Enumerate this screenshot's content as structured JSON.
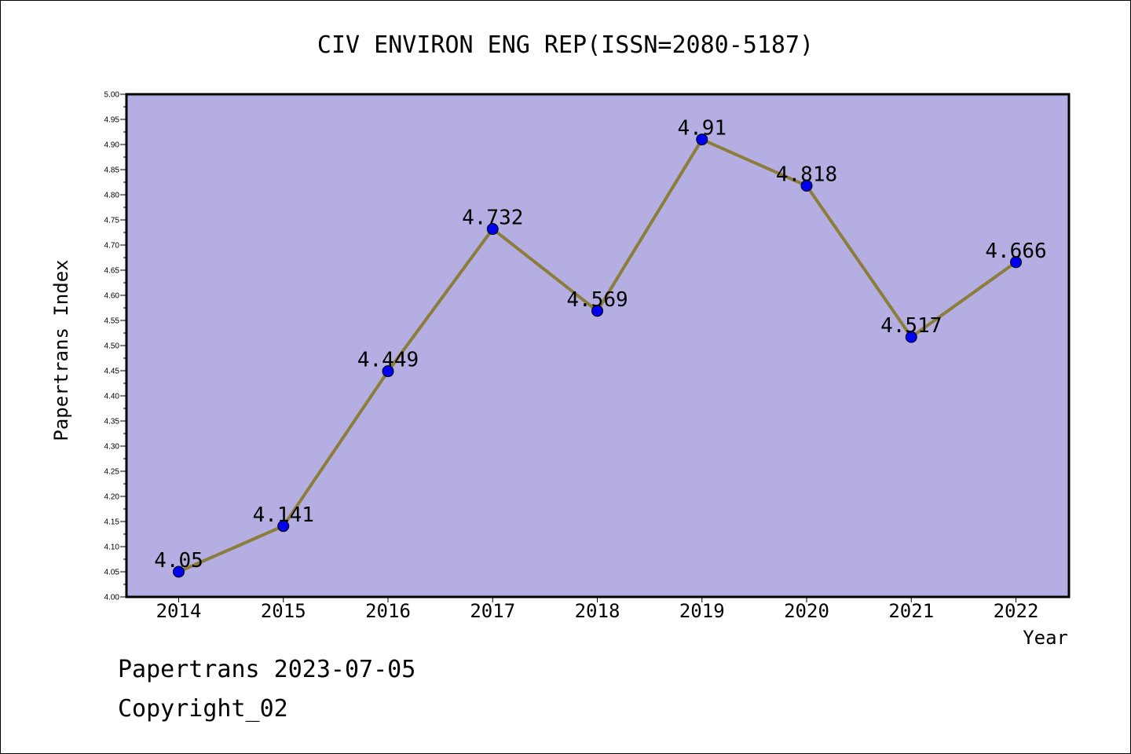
{
  "chart_data": {
    "type": "line",
    "title": "CIV ENVIRON ENG REP(ISSN=2080-5187)",
    "xlabel": "Year",
    "ylabel": "Papertrans Index",
    "x": [
      "2014",
      "2015",
      "2016",
      "2017",
      "2018",
      "2019",
      "2020",
      "2021",
      "2022"
    ],
    "series": [
      {
        "values": [
          4.05,
          4.141,
          4.449,
          4.732,
          4.569,
          4.91,
          4.818,
          4.517,
          4.666
        ],
        "data_labels": [
          "4.05",
          "4.141",
          "4.449",
          "4.732",
          "4.569",
          "4.91",
          "4.818",
          "4.517",
          "4.666"
        ]
      }
    ],
    "ylim": [
      4.0,
      5.0
    ],
    "yticks": [
      "4.00",
      "4.05",
      "4.10",
      "4.15",
      "4.20",
      "4.25",
      "4.30",
      "4.35",
      "4.40",
      "4.45",
      "4.50",
      "4.55",
      "4.60",
      "4.65",
      "4.70",
      "4.75",
      "4.80",
      "4.85",
      "4.90",
      "4.95",
      "5.00"
    ],
    "grid": false,
    "colors": {
      "plot_background": "#b4aee2",
      "line": "#8b7d3a",
      "marker": "#0000ee"
    }
  },
  "footer": {
    "line1": "Papertrans 2023-07-05",
    "line2": "Copyright_02"
  }
}
